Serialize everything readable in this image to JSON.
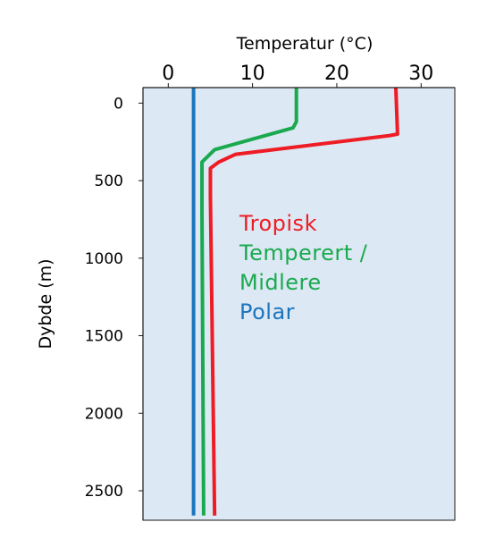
{
  "chart_data": {
    "type": "line",
    "title": "",
    "xlabel": "Temperatur (°C)",
    "ylabel": "Dybde (m)",
    "xlim": [
      -3,
      34
    ],
    "ylim": [
      2690,
      -100
    ],
    "xticks": [
      "0",
      "10",
      "20",
      "30"
    ],
    "yticks": [
      "0",
      "500",
      "1000",
      "1500",
      "2000",
      "2500"
    ],
    "x_axis_position": "top",
    "grid": false,
    "background_color": "#dce8f4",
    "legend_position": "center-right",
    "series": [
      {
        "name": "Tropisk",
        "color": "#ee1c25",
        "points": [
          [
            27,
            -100
          ],
          [
            27.2,
            200
          ],
          [
            26.2,
            210
          ],
          [
            8,
            330
          ],
          [
            6,
            380
          ],
          [
            5,
            420
          ],
          [
            5,
            600
          ],
          [
            5.5,
            2660
          ]
        ]
      },
      {
        "name": "Temperert / Midlere",
        "color": "#1aa94e",
        "points": [
          [
            15.2,
            -100
          ],
          [
            15.2,
            120
          ],
          [
            14.8,
            160
          ],
          [
            5.5,
            300
          ],
          [
            4,
            380
          ],
          [
            4,
            700
          ],
          [
            4.2,
            2660
          ]
        ]
      },
      {
        "name": "Polar",
        "color": "#1c75bc",
        "points": [
          [
            3,
            -100
          ],
          [
            3,
            2660
          ]
        ]
      }
    ],
    "legend": {
      "tropisk": "Tropisk",
      "temperert_line1": "Temperert /",
      "temperert_line2": "Midlere",
      "polar": "Polar"
    }
  }
}
